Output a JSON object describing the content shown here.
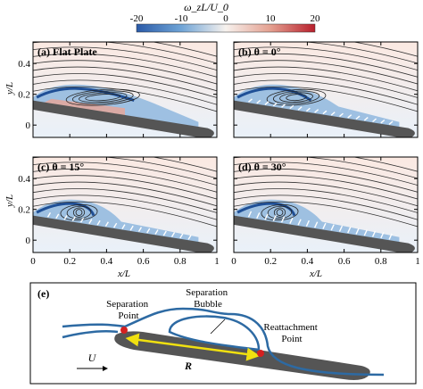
{
  "colorbar": {
    "label": "ω_zL/U_0",
    "ticks": [
      "-20",
      "-10",
      "0",
      "10",
      "20"
    ],
    "range": [
      -20,
      20
    ],
    "colors": [
      "#2a5aa8",
      "#6fa4d6",
      "#f7f2ee",
      "#e4a090",
      "#b81f2c"
    ]
  },
  "panels": [
    {
      "label": "(a) Flat Plate",
      "riblets": false,
      "angle": null
    },
    {
      "label": "(b) θ = 0°",
      "riblets": true,
      "angle": 0
    },
    {
      "label": "(c) θ = 15°",
      "riblets": true,
      "angle": 15
    },
    {
      "label": "(d) θ = 30°",
      "riblets": true,
      "angle": 30
    }
  ],
  "axes": {
    "ylabel": "y/L",
    "xlabel": "x/L",
    "yticks": [
      "0",
      "0.2",
      "0.4"
    ],
    "xticks": [
      "0",
      "0.2",
      "0.4",
      "0.6",
      "0.8",
      "1"
    ]
  },
  "schematic": {
    "label": "(e)",
    "separation_point": "Separation Point",
    "separation_bubble": "Separation Bubble",
    "reattachment_point": "Reattachment Point",
    "freestream": "U",
    "bubble_length": "R"
  },
  "colors": {
    "plate": "#555555",
    "streamline_blue": "#2d6aa3",
    "marker_red": "#d42020",
    "arrow_yellow": "#f0e010"
  }
}
